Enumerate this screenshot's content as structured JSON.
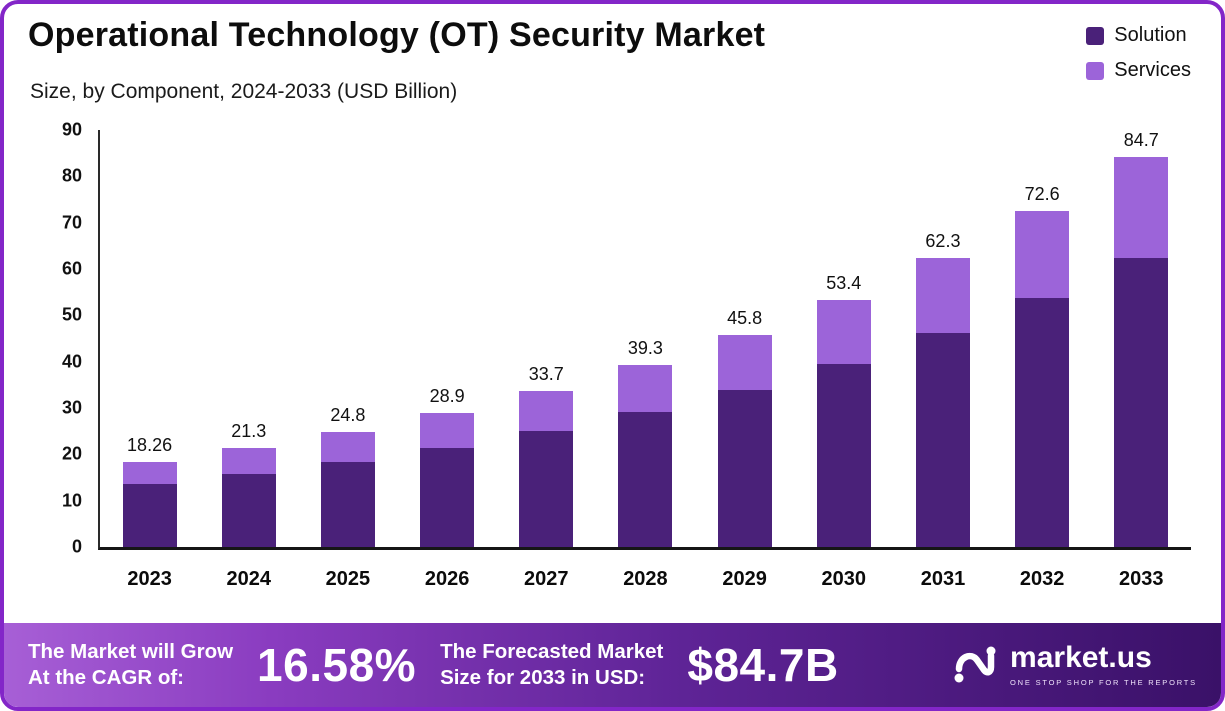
{
  "header": {
    "title": "Operational Technology (OT) Security Market",
    "subtitle": "Size, by Component, 2024-2033 (USD Billion)"
  },
  "chart_data": {
    "type": "bar",
    "stacked": true,
    "title": "Operational Technology (OT) Security Market",
    "subtitle": "Size, by Component, 2024-2033 (USD Billion)",
    "unit": "USD Billion",
    "categories": [
      "2023",
      "2024",
      "2025",
      "2026",
      "2027",
      "2028",
      "2029",
      "2030",
      "2031",
      "2032",
      "2033"
    ],
    "series": [
      {
        "name": "Solution",
        "color": "#4A2179",
        "values": [
          13.5,
          15.8,
          18.4,
          21.4,
          25.0,
          29.1,
          33.9,
          39.6,
          46.1,
          53.8,
          62.7
        ]
      },
      {
        "name": "Services",
        "color": "#9C64D9",
        "values": [
          4.76,
          5.5,
          6.4,
          7.5,
          8.7,
          10.2,
          11.9,
          13.8,
          16.2,
          18.8,
          22.0
        ]
      }
    ],
    "totals": [
      "18.26",
      "21.3",
      "24.8",
      "28.9",
      "33.7",
      "39.3",
      "45.8",
      "53.4",
      "62.3",
      "72.6",
      "84.7"
    ],
    "ylim": [
      0,
      90
    ],
    "yticks": [
      0,
      10,
      20,
      30,
      40,
      50,
      60,
      70,
      80,
      90
    ],
    "grid": false,
    "legend_position": "top-right"
  },
  "colors": {
    "frame_border": "#8326C8",
    "solution": "#4A2179",
    "services": "#9C64D9",
    "axis": "#161616",
    "footer_gradient_start": "#A75FD6",
    "footer_gradient_end": "#3A1168"
  },
  "footer": {
    "cagr_label_line1": "The Market will Grow",
    "cagr_label_line2": "At the CAGR of:",
    "cagr_value": "16.58%",
    "forecast_label_line1": "The Forecasted Market",
    "forecast_label_line2": "Size for 2033 in USD:",
    "forecast_value": "$84.7B",
    "brand": "market.us",
    "brand_tagline": "ONE STOP SHOP FOR THE REPORTS"
  }
}
